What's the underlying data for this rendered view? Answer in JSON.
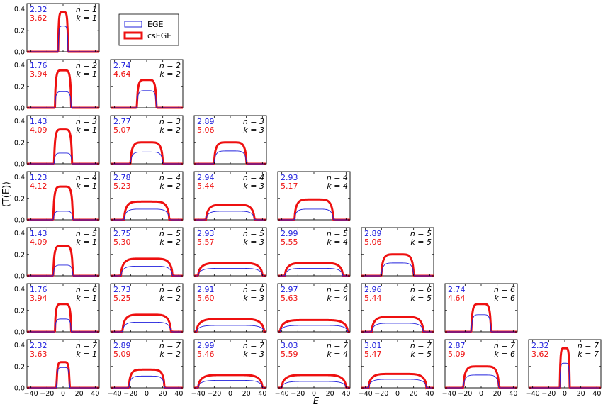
{
  "chart_data": {
    "type": "line",
    "layout": "lower-triangular grid of subplots, rows n = 1..7, columns k = 1..n",
    "xlabel": "E",
    "ylabel": "⟨T(E)⟩",
    "xlim": [
      -45,
      45
    ],
    "ylim": [
      0,
      0.45
    ],
    "xticks": [
      -40,
      -20,
      0,
      20,
      40
    ],
    "yticks": [
      0.0,
      0.2,
      0.4
    ],
    "xtick_labels": [
      "−40",
      "−20",
      "0",
      "20",
      "40"
    ],
    "ytick_labels": [
      "0.0",
      "0.2",
      "0.4"
    ],
    "grid": false,
    "legend": {
      "placement": "top, right of first panel",
      "entries": [
        {
          "label": "EGE",
          "color": "#2020dd"
        },
        {
          "label": "csEGE",
          "color": "#ee1010"
        }
      ]
    },
    "series_styles": {
      "EGE": {
        "color": "#2020dd",
        "linewidth": "thin"
      },
      "csEGE": {
        "color": "#ee1010",
        "linewidth": "thick"
      }
    },
    "panels": [
      {
        "n": 1,
        "k": 1,
        "n_label": "n = 1",
        "k_label": "k = 1",
        "ege_value": "2.32",
        "csege_value": "3.62",
        "half_width": 6,
        "peak_ege": 0.24,
        "peak_csege": 0.37
      },
      {
        "n": 2,
        "k": 1,
        "n_label": "n = 2",
        "k_label": "k = 1",
        "ege_value": "1.76",
        "csege_value": "3.94",
        "half_width": 10,
        "peak_ege": 0.15,
        "peak_csege": 0.35
      },
      {
        "n": 2,
        "k": 2,
        "n_label": "n = 2",
        "k_label": "k = 2",
        "ege_value": "2.74",
        "csege_value": "4.64",
        "half_width": 12,
        "peak_ege": 0.16,
        "peak_csege": 0.26
      },
      {
        "n": 3,
        "k": 1,
        "n_label": "n = 3",
        "k_label": "k = 1",
        "ege_value": "1.43",
        "csege_value": "4.09",
        "half_width": 11,
        "peak_ege": 0.1,
        "peak_csege": 0.32
      },
      {
        "n": 3,
        "k": 2,
        "n_label": "n = 3",
        "k_label": "k = 2",
        "ege_value": "2.77",
        "csege_value": "5.07",
        "half_width": 20,
        "peak_ege": 0.11,
        "peak_csege": 0.2
      },
      {
        "n": 3,
        "k": 3,
        "n_label": "n = 3",
        "k_label": "k = 3",
        "ege_value": "2.89",
        "csege_value": "5.06",
        "half_width": 20,
        "peak_ege": 0.12,
        "peak_csege": 0.2
      },
      {
        "n": 4,
        "k": 1,
        "n_label": "n = 4",
        "k_label": "k = 1",
        "ege_value": "1.23",
        "csege_value": "4.12",
        "half_width": 12,
        "peak_ege": 0.08,
        "peak_csege": 0.31
      },
      {
        "n": 4,
        "k": 2,
        "n_label": "n = 4",
        "k_label": "k = 2",
        "ege_value": "2.78",
        "csege_value": "5.23",
        "half_width": 28,
        "peak_ege": 0.1,
        "peak_csege": 0.17
      },
      {
        "n": 4,
        "k": 3,
        "n_label": "n = 4",
        "k_label": "k = 3",
        "ege_value": "2.94",
        "csege_value": "5.44",
        "half_width": 30,
        "peak_ege": 0.08,
        "peak_csege": 0.14
      },
      {
        "n": 4,
        "k": 4,
        "n_label": "n = 4",
        "k_label": "k = 4",
        "ege_value": "2.93",
        "csege_value": "5.17",
        "half_width": 24,
        "peak_ege": 0.1,
        "peak_csege": 0.19
      },
      {
        "n": 5,
        "k": 1,
        "n_label": "n = 5",
        "k_label": "k = 1",
        "ege_value": "1.43",
        "csege_value": "4.09",
        "half_width": 12,
        "peak_ege": 0.1,
        "peak_csege": 0.28
      },
      {
        "n": 5,
        "k": 2,
        "n_label": "n = 5",
        "k_label": "k = 2",
        "ege_value": "2.75",
        "csege_value": "5.30",
        "half_width": 32,
        "peak_ege": 0.09,
        "peak_csege": 0.16
      },
      {
        "n": 5,
        "k": 3,
        "n_label": "n = 5",
        "k_label": "k = 3",
        "ege_value": "2.93",
        "csege_value": "5.57",
        "half_width": 40,
        "peak_ege": 0.07,
        "peak_csege": 0.12
      },
      {
        "n": 5,
        "k": 4,
        "n_label": "n = 5",
        "k_label": "k = 4",
        "ege_value": "2.99",
        "csege_value": "5.55",
        "half_width": 36,
        "peak_ege": 0.07,
        "peak_csege": 0.12
      },
      {
        "n": 5,
        "k": 5,
        "n_label": "n = 5",
        "k_label": "k = 5",
        "ege_value": "2.89",
        "csege_value": "5.06",
        "half_width": 20,
        "peak_ege": 0.12,
        "peak_csege": 0.2
      },
      {
        "n": 6,
        "k": 1,
        "n_label": "n = 6",
        "k_label": "k = 1",
        "ege_value": "1.76",
        "csege_value": "3.94",
        "half_width": 10,
        "peak_ege": 0.12,
        "peak_csege": 0.26
      },
      {
        "n": 6,
        "k": 2,
        "n_label": "n = 6",
        "k_label": "k = 2",
        "ege_value": "2.73",
        "csege_value": "5.25",
        "half_width": 30,
        "peak_ege": 0.09,
        "peak_csege": 0.16
      },
      {
        "n": 6,
        "k": 3,
        "n_label": "n = 6",
        "k_label": "k = 3",
        "ege_value": "2.91",
        "csege_value": "5.60",
        "half_width": 42,
        "peak_ege": 0.06,
        "peak_csege": 0.12
      },
      {
        "n": 6,
        "k": 4,
        "n_label": "n = 6",
        "k_label": "k = 4",
        "ege_value": "2.97",
        "csege_value": "5.63",
        "half_width": 42,
        "peak_ege": 0.06,
        "peak_csege": 0.11
      },
      {
        "n": 6,
        "k": 5,
        "n_label": "n = 6",
        "k_label": "k = 5",
        "ege_value": "2.96",
        "csege_value": "5.44",
        "half_width": 32,
        "peak_ege": 0.08,
        "peak_csege": 0.14
      },
      {
        "n": 6,
        "k": 6,
        "n_label": "n = 6",
        "k_label": "k = 6",
        "ege_value": "2.74",
        "csege_value": "4.64",
        "half_width": 12,
        "peak_ege": 0.16,
        "peak_csege": 0.26
      },
      {
        "n": 7,
        "k": 1,
        "n_label": "n = 7",
        "k_label": "k = 1",
        "ege_value": "2.32",
        "csege_value": "3.63",
        "half_width": 8,
        "peak_ege": 0.19,
        "peak_csege": 0.24
      },
      {
        "n": 7,
        "k": 2,
        "n_label": "n = 7",
        "k_label": "k = 2",
        "ege_value": "2.89",
        "csege_value": "5.09",
        "half_width": 22,
        "peak_ege": 0.11,
        "peak_csege": 0.17
      },
      {
        "n": 7,
        "k": 3,
        "n_label": "n = 7",
        "k_label": "k = 3",
        "ege_value": "2.99",
        "csege_value": "5.46",
        "half_width": 40,
        "peak_ege": 0.07,
        "peak_csege": 0.12
      },
      {
        "n": 7,
        "k": 4,
        "n_label": "n = 7",
        "k_label": "k = 4",
        "ege_value": "3.03",
        "csege_value": "5.59",
        "half_width": 40,
        "peak_ege": 0.06,
        "peak_csege": 0.12
      },
      {
        "n": 7,
        "k": 5,
        "n_label": "n = 7",
        "k_label": "k = 5",
        "ege_value": "3.01",
        "csege_value": "5.47",
        "half_width": 36,
        "peak_ege": 0.08,
        "peak_csege": 0.13
      },
      {
        "n": 7,
        "k": 6,
        "n_label": "n = 7",
        "k_label": "k = 6",
        "ege_value": "2.87",
        "csege_value": "5.09",
        "half_width": 22,
        "peak_ege": 0.12,
        "peak_csege": 0.2
      },
      {
        "n": 7,
        "k": 7,
        "n_label": "n = 7",
        "k_label": "k = 7",
        "ege_value": "2.32",
        "csege_value": "3.62",
        "half_width": 6,
        "peak_ege": 0.23,
        "peak_csege": 0.37
      }
    ]
  }
}
